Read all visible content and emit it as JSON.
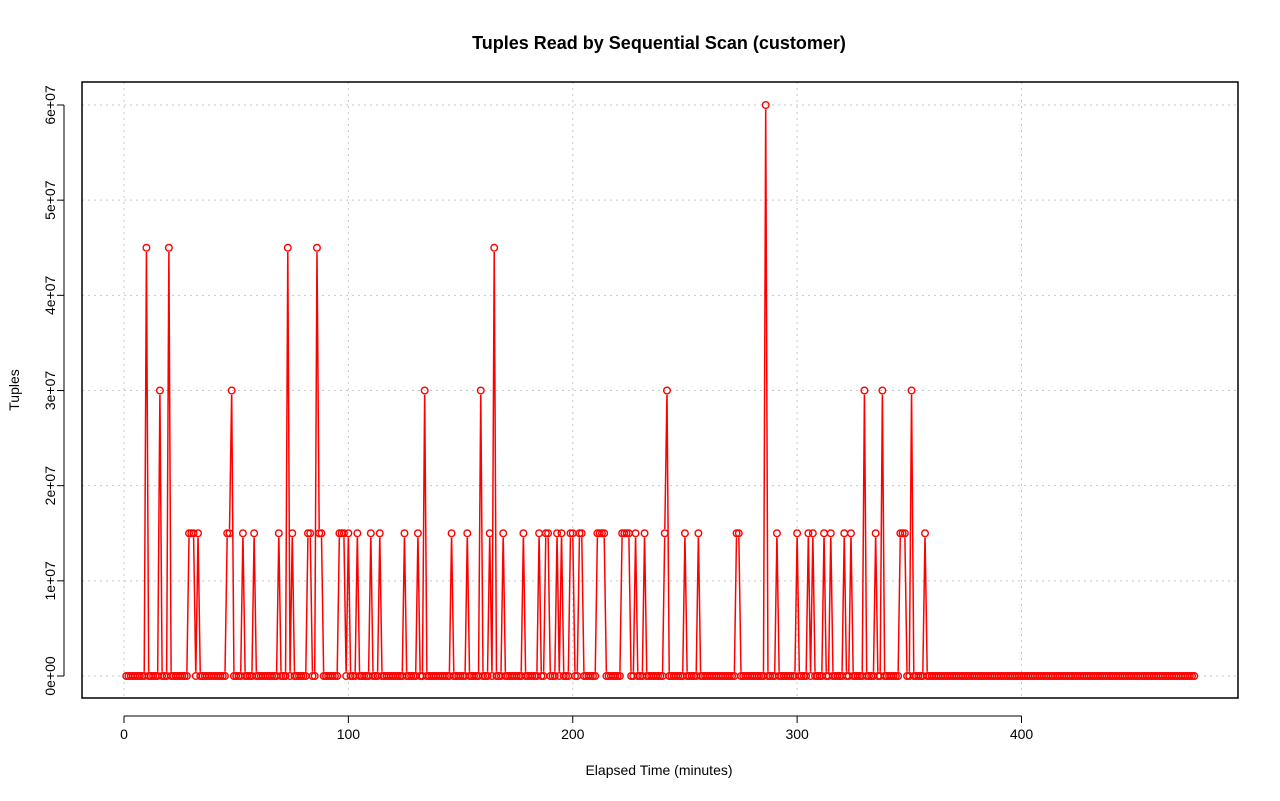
{
  "chart_data": {
    "type": "line",
    "title": "Tuples Read by Sequential Scan (customer)",
    "xlabel": "Elapsed Time (minutes)",
    "ylabel": "Tuples",
    "xlim": [
      0,
      478
    ],
    "ylim": [
      0,
      60000000
    ],
    "x_ticks": [
      0,
      100,
      200,
      300,
      400
    ],
    "x_tick_labels": [
      "0",
      "100",
      "200",
      "300",
      "400"
    ],
    "y_ticks": [
      0,
      10000000,
      20000000,
      30000000,
      40000000,
      50000000,
      60000000
    ],
    "y_tick_labels": [
      "0e+00",
      "1e+07",
      "2e+07",
      "3e+07",
      "4e+07",
      "5e+07",
      "6e+07"
    ],
    "grid": true,
    "log_scale": false,
    "series_color": "#ff0000",
    "markers": "open-circle",
    "x_start": 1,
    "x_end": 477,
    "x_step": 1,
    "default_value": 0,
    "series": [
      {
        "nonzero_points": [
          [
            10,
            45000000
          ],
          [
            16,
            30000000
          ],
          [
            20,
            45000000
          ],
          [
            29,
            15000000
          ],
          [
            30,
            15000000
          ],
          [
            31,
            15000000
          ],
          [
            33,
            15000000
          ],
          [
            46,
            15000000
          ],
          [
            47,
            15000000
          ],
          [
            48,
            30000000
          ],
          [
            53,
            15000000
          ],
          [
            58,
            15000000
          ],
          [
            69,
            15000000
          ],
          [
            73,
            45000000
          ],
          [
            75,
            15000000
          ],
          [
            82,
            15000000
          ],
          [
            83,
            15000000
          ],
          [
            86,
            45000000
          ],
          [
            87,
            15000000
          ],
          [
            88,
            15000000
          ],
          [
            96,
            15000000
          ],
          [
            97,
            15000000
          ],
          [
            98,
            15000000
          ],
          [
            100,
            15000000
          ],
          [
            104,
            15000000
          ],
          [
            110,
            15000000
          ],
          [
            114,
            15000000
          ],
          [
            125,
            15000000
          ],
          [
            131,
            15000000
          ],
          [
            134,
            30000000
          ],
          [
            146,
            15000000
          ],
          [
            153,
            15000000
          ],
          [
            159,
            30000000
          ],
          [
            163,
            15000000
          ],
          [
            165,
            45000000
          ],
          [
            169,
            15000000
          ],
          [
            178,
            15000000
          ],
          [
            185,
            15000000
          ],
          [
            188,
            15000000
          ],
          [
            189,
            15000000
          ],
          [
            193,
            15000000
          ],
          [
            195,
            15000000
          ],
          [
            199,
            15000000
          ],
          [
            200,
            15000000
          ],
          [
            203,
            15000000
          ],
          [
            204,
            15000000
          ],
          [
            211,
            15000000
          ],
          [
            212,
            15000000
          ],
          [
            213,
            15000000
          ],
          [
            214,
            15000000
          ],
          [
            222,
            15000000
          ],
          [
            223,
            15000000
          ],
          [
            224,
            15000000
          ],
          [
            225,
            15000000
          ],
          [
            228,
            15000000
          ],
          [
            232,
            15000000
          ],
          [
            241,
            15000000
          ],
          [
            242,
            30000000
          ],
          [
            250,
            15000000
          ],
          [
            256,
            15000000
          ],
          [
            273,
            15000000
          ],
          [
            274,
            15000000
          ],
          [
            286,
            60000000
          ],
          [
            291,
            15000000
          ],
          [
            300,
            15000000
          ],
          [
            305,
            15000000
          ],
          [
            307,
            15000000
          ],
          [
            312,
            15000000
          ],
          [
            315,
            15000000
          ],
          [
            321,
            15000000
          ],
          [
            324,
            15000000
          ],
          [
            330,
            30000000
          ],
          [
            335,
            15000000
          ],
          [
            338,
            30000000
          ],
          [
            346,
            15000000
          ],
          [
            347,
            15000000
          ],
          [
            348,
            15000000
          ],
          [
            351,
            30000000
          ],
          [
            357,
            15000000
          ]
        ]
      }
    ]
  }
}
